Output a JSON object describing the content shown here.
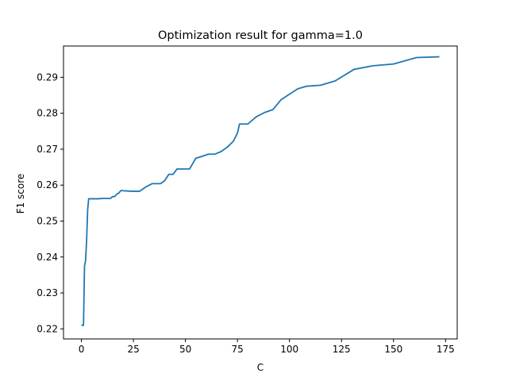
{
  "chart_data": {
    "type": "line",
    "title": "Optimization result for gamma=1.0",
    "xlabel": "C",
    "ylabel": "F1 score",
    "xlim": [
      -8.6,
      180.6
    ],
    "ylim": [
      0.2172,
      0.2987
    ],
    "xticks": [
      0,
      25,
      50,
      75,
      100,
      125,
      150,
      175
    ],
    "yticks": [
      0.22,
      0.23,
      0.24,
      0.25,
      0.26,
      0.27,
      0.28,
      0.29
    ],
    "grid": false,
    "color": "#1f77b4",
    "series": [
      {
        "x": [
          0,
          1,
          1.5,
          2,
          2.5,
          3,
          3.5,
          4,
          6,
          8,
          10,
          12,
          14,
          15,
          16,
          17,
          18,
          19,
          21,
          24,
          28,
          31,
          34,
          36,
          38,
          40,
          42,
          44,
          46,
          48,
          50,
          52,
          55,
          58,
          61,
          64,
          67,
          70,
          73,
          75,
          76,
          80,
          84,
          88,
          92,
          96,
          100,
          104,
          108,
          115,
          122,
          131,
          140,
          150,
          161,
          172
        ],
        "y": [
          0.221,
          0.221,
          0.2375,
          0.239,
          0.2445,
          0.253,
          0.2562,
          0.2562,
          0.2562,
          0.2562,
          0.2563,
          0.2563,
          0.2563,
          0.2568,
          0.2568,
          0.2575,
          0.2578,
          0.2585,
          0.2584,
          0.2583,
          0.2583,
          0.2595,
          0.2604,
          0.2604,
          0.2604,
          0.2612,
          0.263,
          0.263,
          0.2645,
          0.2645,
          0.2645,
          0.2645,
          0.2675,
          0.268,
          0.2686,
          0.2686,
          0.2693,
          0.2705,
          0.2722,
          0.2745,
          0.277,
          0.277,
          0.279,
          0.2802,
          0.281,
          0.2838,
          0.2853,
          0.2868,
          0.2875,
          0.2878,
          0.289,
          0.2922,
          0.2932,
          0.2937,
          0.2955,
          0.2957
        ]
      }
    ]
  }
}
